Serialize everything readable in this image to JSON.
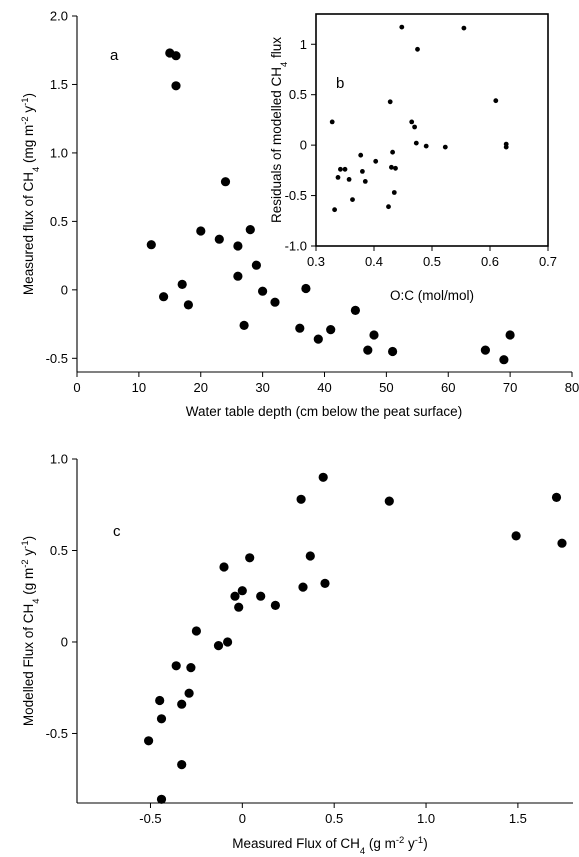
{
  "chart_data": [
    {
      "id": "a",
      "type": "scatter",
      "panel_label": "a",
      "xlabel": "Water table depth (cm below the peat surface)",
      "ylabel_parts": [
        "Measured flux of CH",
        "4",
        " (mg m",
        "-2",
        " y",
        "-1",
        ")"
      ],
      "xlim": [
        0,
        80
      ],
      "ylim": [
        -0.6,
        2.0
      ],
      "xticks": [
        "0",
        "10",
        "20",
        "30",
        "40",
        "50",
        "60",
        "70",
        "80"
      ],
      "yticks": [
        "-0.5",
        "0",
        "0.5",
        "1.0",
        "1.5",
        "2.0"
      ],
      "points": [
        [
          15,
          1.73
        ],
        [
          16,
          1.71
        ],
        [
          16,
          1.49
        ],
        [
          24,
          0.79
        ],
        [
          12,
          0.33
        ],
        [
          14,
          -0.05
        ],
        [
          17,
          0.04
        ],
        [
          18,
          -0.11
        ],
        [
          20,
          0.43
        ],
        [
          23,
          0.37
        ],
        [
          26,
          0.32
        ],
        [
          26,
          0.1
        ],
        [
          28,
          0.44
        ],
        [
          29,
          0.18
        ],
        [
          30,
          -0.01
        ],
        [
          27,
          -0.26
        ],
        [
          32,
          -0.09
        ],
        [
          36,
          -0.28
        ],
        [
          37,
          0.01
        ],
        [
          39,
          -0.36
        ],
        [
          41,
          -0.29
        ],
        [
          45,
          -0.15
        ],
        [
          47,
          -0.44
        ],
        [
          48,
          -0.33
        ],
        [
          51,
          -0.45
        ],
        [
          66,
          -0.44
        ],
        [
          69,
          -0.51
        ],
        [
          70,
          -0.33
        ]
      ]
    },
    {
      "id": "b",
      "type": "scatter",
      "panel_label": "b",
      "xlabel": "O:C (mol/mol)",
      "ylabel_parts": [
        "Residuals  of modelled CH",
        "4",
        " flux"
      ],
      "xlim": [
        0.3,
        0.7
      ],
      "ylim": [
        -1.0,
        1.3
      ],
      "xticks": [
        "0.3",
        "0.4",
        "0.5",
        "0.6",
        "0.7"
      ],
      "yticks": [
        "-1.0",
        "-0.5",
        "0",
        "0.5",
        "1"
      ],
      "points": [
        [
          0.328,
          0.23
        ],
        [
          0.332,
          -0.64
        ],
        [
          0.338,
          -0.32
        ],
        [
          0.342,
          -0.24
        ],
        [
          0.35,
          -0.24
        ],
        [
          0.357,
          -0.34
        ],
        [
          0.363,
          -0.54
        ],
        [
          0.377,
          -0.1
        ],
        [
          0.38,
          -0.26
        ],
        [
          0.385,
          -0.36
        ],
        [
          0.403,
          -0.16
        ],
        [
          0.425,
          -0.61
        ],
        [
          0.428,
          0.43
        ],
        [
          0.43,
          -0.22
        ],
        [
          0.432,
          -0.07
        ],
        [
          0.435,
          -0.47
        ],
        [
          0.437,
          -0.23
        ],
        [
          0.448,
          1.17
        ],
        [
          0.465,
          0.23
        ],
        [
          0.47,
          0.18
        ],
        [
          0.473,
          0.02
        ],
        [
          0.475,
          0.95
        ],
        [
          0.49,
          -0.01
        ],
        [
          0.523,
          -0.02
        ],
        [
          0.555,
          1.16
        ],
        [
          0.61,
          0.44
        ],
        [
          0.628,
          0.01
        ],
        [
          0.628,
          -0.02
        ]
      ]
    },
    {
      "id": "c",
      "type": "scatter",
      "panel_label": "c",
      "xlabel_parts": [
        "Measured Flux of CH",
        "4",
        " (g m",
        "-2",
        " y",
        "-1",
        ")"
      ],
      "ylabel_parts": [
        "Modelled Flux of CH",
        "4",
        " (g m",
        "-2",
        " y",
        "-1",
        ")"
      ],
      "xlim": [
        -0.9,
        1.8
      ],
      "ylim": [
        -0.88,
        1.0
      ],
      "xticks": [
        "-0.5",
        "0",
        "0.5",
        "1.0",
        "1.5"
      ],
      "yticks": [
        "-0.5",
        "0",
        "0.5",
        "1.0"
      ],
      "points": [
        [
          -0.51,
          -0.54
        ],
        [
          -0.45,
          -0.32
        ],
        [
          -0.44,
          -0.42
        ],
        [
          -0.44,
          -0.86
        ],
        [
          -0.36,
          -0.13
        ],
        [
          -0.33,
          -0.34
        ],
        [
          -0.33,
          -0.67
        ],
        [
          -0.29,
          -0.28
        ],
        [
          -0.28,
          -0.14
        ],
        [
          -0.25,
          0.06
        ],
        [
          -0.13,
          -0.02
        ],
        [
          -0.1,
          0.41
        ],
        [
          -0.08,
          0.0
        ],
        [
          -0.04,
          0.25
        ],
        [
          -0.02,
          0.19
        ],
        [
          0.0,
          0.28
        ],
        [
          0.04,
          0.46
        ],
        [
          0.1,
          0.25
        ],
        [
          0.18,
          0.2
        ],
        [
          0.32,
          0.78
        ],
        [
          0.33,
          0.3
        ],
        [
          0.37,
          0.47
        ],
        [
          0.44,
          0.9
        ],
        [
          0.45,
          0.32
        ],
        [
          0.8,
          0.77
        ],
        [
          1.49,
          0.58
        ],
        [
          1.71,
          0.79
        ],
        [
          1.74,
          0.54
        ]
      ]
    }
  ]
}
